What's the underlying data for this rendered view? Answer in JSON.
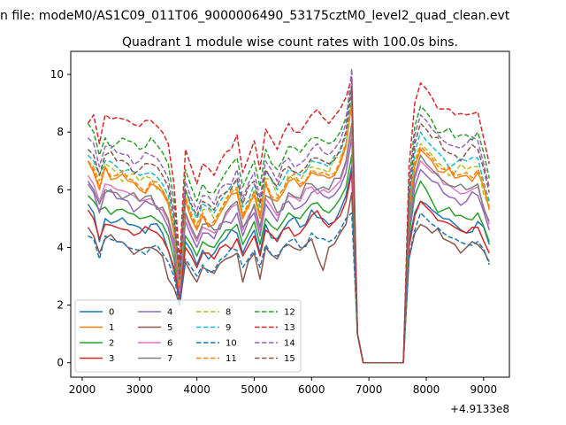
{
  "chart_data": {
    "type": "line",
    "suptitle": "n file: modeM0/AS1C09_011T06_9000006490_53175cztM0_level2_quad_clean.evt",
    "title": "Quadrant 1 module wise count rates with 100.0s bins.",
    "xlabel": "",
    "ylabel": "",
    "offset_text": "+4.9133e8",
    "xlim": [
      1800,
      9450
    ],
    "ylim": [
      -0.5,
      10.8
    ],
    "xticks": [
      2000,
      3000,
      4000,
      5000,
      6000,
      7000,
      8000,
      9000
    ],
    "yticks": [
      0,
      2,
      4,
      6,
      8,
      10
    ],
    "x_start": 2100,
    "x_step": 100,
    "n_points": 71,
    "legend": {
      "loc": "lower-left",
      "ncol": 4
    },
    "anchors_x": [
      2100,
      2200,
      2300,
      2400,
      2600,
      2800,
      3000,
      3200,
      3400,
      3500,
      3600,
      3700,
      3800,
      3900,
      4000,
      4100,
      4300,
      4500,
      4700,
      4800,
      5000,
      5100,
      5200,
      5400,
      5600,
      5800,
      6000,
      6200,
      6300,
      6500,
      6600,
      6700,
      6800,
      6900,
      7000,
      7600,
      7700,
      7800,
      7900,
      8000,
      8100,
      8300,
      8500,
      8700,
      8900,
      9100
    ],
    "series": [
      {
        "name": "0",
        "style": "solid",
        "color": "#1f77b4",
        "anchors": [
          5.5,
          5.2,
          4.2,
          5.0,
          4.9,
          4.8,
          4.7,
          4.8,
          4.5,
          3.9,
          3.2,
          2.1,
          4.2,
          3.9,
          3.4,
          3.9,
          3.8,
          4.3,
          4.5,
          3.8,
          4.6,
          3.8,
          4.8,
          4.3,
          4.9,
          4.7,
          5.3,
          5.0,
          4.8,
          5.3,
          5.8,
          6.8,
          1.0,
          0,
          0,
          0,
          4.2,
          5.2,
          5.6,
          5.5,
          5.3,
          5.0,
          4.8,
          4.5,
          4.9,
          4.1
        ]
      },
      {
        "name": "1",
        "style": "solid",
        "color": "#ff7f0e",
        "anchors": [
          7.0,
          6.6,
          6.0,
          6.8,
          6.4,
          6.3,
          6.0,
          6.2,
          5.9,
          5.5,
          4.5,
          2.6,
          5.6,
          5.0,
          4.6,
          5.1,
          4.8,
          5.5,
          5.9,
          5.0,
          5.8,
          5.0,
          6.2,
          5.6,
          6.3,
          6.1,
          6.6,
          6.5,
          6.4,
          6.9,
          7.5,
          9.0,
          1.0,
          0,
          0,
          0,
          5.2,
          6.8,
          7.4,
          7.2,
          7.0,
          6.6,
          6.4,
          6.5,
          6.6,
          5.3
        ]
      },
      {
        "name": "2",
        "style": "solid",
        "color": "#2ca02c",
        "anchors": [
          5.8,
          5.6,
          5.3,
          5.4,
          5.3,
          5.2,
          5.0,
          5.1,
          4.8,
          4.4,
          3.6,
          2.3,
          4.4,
          4.1,
          3.7,
          4.2,
          4.0,
          4.6,
          4.8,
          4.1,
          4.9,
          4.1,
          5.0,
          4.6,
          5.2,
          5.0,
          5.5,
          5.3,
          5.2,
          5.7,
          6.1,
          7.2,
          1.0,
          0,
          0,
          0,
          4.4,
          5.8,
          6.3,
          6.0,
          5.6,
          5.3,
          5.1,
          5.0,
          5.2,
          4.2
        ]
      },
      {
        "name": "3",
        "style": "solid",
        "color": "#d62728",
        "anchors": [
          5.3,
          5.0,
          4.3,
          4.8,
          4.7,
          4.6,
          4.5,
          4.6,
          4.3,
          3.9,
          3.3,
          2.2,
          4.0,
          3.7,
          3.3,
          3.8,
          3.6,
          4.1,
          4.3,
          3.7,
          4.4,
          3.7,
          4.6,
          4.2,
          4.7,
          4.5,
          5.1,
          4.9,
          4.7,
          5.1,
          5.6,
          6.6,
          1.0,
          0,
          0,
          0,
          4.0,
          5.1,
          5.6,
          5.4,
          5.2,
          4.9,
          4.7,
          4.5,
          4.7,
          3.8
        ]
      },
      {
        "name": "4",
        "style": "solid",
        "color": "#9467bd",
        "anchors": [
          6.2,
          5.9,
          5.2,
          5.9,
          5.7,
          5.6,
          5.4,
          5.5,
          5.1,
          4.7,
          3.9,
          2.4,
          4.9,
          4.4,
          4.0,
          4.5,
          4.3,
          4.9,
          5.2,
          4.4,
          5.2,
          4.4,
          5.5,
          4.9,
          5.6,
          5.4,
          5.9,
          5.8,
          5.7,
          6.1,
          6.6,
          7.8,
          1.0,
          0,
          0,
          0,
          4.6,
          6.1,
          6.7,
          6.5,
          6.3,
          5.9,
          5.7,
          5.6,
          5.8,
          4.6
        ]
      },
      {
        "name": "5",
        "style": "solid",
        "color": "#8c564b",
        "anchors": [
          4.7,
          4.4,
          3.8,
          4.3,
          4.2,
          4.0,
          3.9,
          4.0,
          3.7,
          2.9,
          2.6,
          2.0,
          3.5,
          3.1,
          2.8,
          3.3,
          3.1,
          3.6,
          3.8,
          2.8,
          3.8,
          2.9,
          4.0,
          3.6,
          4.1,
          3.9,
          4.3,
          3.2,
          4.0,
          4.5,
          4.8,
          5.9,
          1.0,
          0,
          0,
          0,
          3.6,
          4.5,
          4.8,
          4.7,
          4.5,
          4.3,
          4.1,
          4.0,
          4.1,
          3.5
        ]
      },
      {
        "name": "6",
        "style": "solid",
        "color": "#e377c2",
        "anchors": [
          6.5,
          6.2,
          5.6,
          6.2,
          6.0,
          5.9,
          5.6,
          5.7,
          5.3,
          4.9,
          4.1,
          2.5,
          5.1,
          4.6,
          4.2,
          4.7,
          4.5,
          5.1,
          5.5,
          4.6,
          5.4,
          4.6,
          5.7,
          5.1,
          5.8,
          5.6,
          6.1,
          6.0,
          5.9,
          6.3,
          6.9,
          8.1,
          1.0,
          0,
          0,
          0,
          4.8,
          6.4,
          7.0,
          6.8,
          6.6,
          6.2,
          6.0,
          5.9,
          6.1,
          4.8
        ]
      },
      {
        "name": "7",
        "style": "solid",
        "color": "#7f7f7f",
        "anchors": [
          6.3,
          6.0,
          5.5,
          6.0,
          5.9,
          5.8,
          5.6,
          5.8,
          5.4,
          5.0,
          4.2,
          2.6,
          5.2,
          4.7,
          4.3,
          4.8,
          4.6,
          5.2,
          5.6,
          4.7,
          5.5,
          4.7,
          5.8,
          5.2,
          5.9,
          5.7,
          6.2,
          6.1,
          6.0,
          6.4,
          7.0,
          8.3,
          1.0,
          0,
          0,
          0,
          4.9,
          6.5,
          7.2,
          6.9,
          6.7,
          6.3,
          6.1,
          6.0,
          6.2,
          4.9
        ]
      },
      {
        "name": "8",
        "style": "dashed",
        "color": "#bcbd22",
        "anchors": [
          7.0,
          6.8,
          6.3,
          6.9,
          6.6,
          6.5,
          6.3,
          6.4,
          6.0,
          5.6,
          4.6,
          2.7,
          5.8,
          5.2,
          4.8,
          5.3,
          5.0,
          5.7,
          6.1,
          5.2,
          6.0,
          5.2,
          6.4,
          5.8,
          6.5,
          6.3,
          6.8,
          6.7,
          6.6,
          7.1,
          7.6,
          9.1,
          1.0,
          0,
          0,
          0,
          5.3,
          7.0,
          7.6,
          7.4,
          7.2,
          6.8,
          6.6,
          6.7,
          6.8,
          5.4
        ]
      },
      {
        "name": "9",
        "style": "dashed",
        "color": "#17becf",
        "anchors": [
          7.2,
          7.0,
          6.5,
          7.0,
          6.8,
          6.7,
          6.5,
          6.6,
          6.2,
          5.8,
          4.7,
          2.8,
          6.0,
          5.4,
          5.0,
          5.5,
          5.2,
          5.9,
          6.3,
          5.4,
          6.2,
          5.4,
          6.6,
          6.0,
          6.7,
          6.5,
          7.0,
          6.9,
          6.8,
          7.3,
          7.9,
          9.3,
          1.0,
          0,
          0,
          0,
          5.5,
          7.3,
          8.0,
          7.7,
          7.5,
          7.1,
          6.9,
          7.0,
          7.1,
          5.6
        ]
      },
      {
        "name": "10",
        "style": "dashed",
        "color": "#1f77b4",
        "anchors": [
          4.4,
          4.3,
          3.6,
          4.4,
          4.2,
          4.0,
          3.9,
          4.0,
          3.8,
          3.5,
          3.0,
          2.0,
          3.6,
          3.3,
          3.0,
          3.4,
          3.2,
          3.7,
          3.9,
          3.3,
          3.9,
          3.3,
          4.1,
          3.7,
          4.2,
          4.0,
          4.5,
          4.3,
          4.2,
          4.6,
          5.0,
          5.2,
          1.0,
          0,
          0,
          0,
          3.7,
          4.6,
          5.2,
          5.0,
          4.8,
          4.5,
          4.3,
          4.1,
          4.2,
          3.4
        ]
      },
      {
        "name": "11",
        "style": "dashed",
        "color": "#ff7f0e",
        "anchors": [
          7.0,
          6.7,
          6.1,
          6.8,
          6.5,
          6.4,
          6.1,
          6.3,
          6.0,
          5.6,
          4.6,
          2.7,
          5.7,
          5.1,
          4.7,
          5.2,
          4.9,
          5.6,
          6.0,
          5.1,
          5.9,
          5.1,
          6.3,
          5.7,
          6.4,
          6.2,
          6.7,
          6.6,
          6.5,
          7.0,
          7.6,
          9.0,
          1.0,
          0,
          0,
          0,
          5.3,
          6.9,
          7.5,
          7.3,
          7.1,
          6.7,
          6.5,
          6.6,
          6.7,
          5.4
        ]
      },
      {
        "name": "12",
        "style": "dashed",
        "color": "#2ca02c",
        "anchors": [
          8.3,
          8.0,
          7.2,
          7.8,
          7.6,
          7.7,
          7.4,
          7.8,
          7.3,
          6.9,
          5.6,
          3.2,
          6.7,
          6.1,
          5.6,
          6.2,
          5.9,
          6.6,
          7.1,
          6.1,
          7.0,
          6.1,
          7.4,
          6.7,
          7.5,
          7.3,
          7.8,
          7.7,
          7.6,
          8.0,
          8.5,
          9.6,
          1.0,
          0,
          0,
          0,
          6.2,
          8.2,
          8.9,
          8.7,
          8.4,
          8.0,
          7.8,
          7.9,
          8.0,
          6.4
        ]
      },
      {
        "name": "13",
        "style": "dashed",
        "color": "#d62728",
        "anchors": [
          8.3,
          8.6,
          7.6,
          8.6,
          8.5,
          8.4,
          8.2,
          8.4,
          8.0,
          7.6,
          6.2,
          3.5,
          7.4,
          6.8,
          6.2,
          6.9,
          6.5,
          7.3,
          7.9,
          6.6,
          7.7,
          6.7,
          8.1,
          7.4,
          8.3,
          8.0,
          8.6,
          8.5,
          8.3,
          8.8,
          9.2,
          9.9,
          1.0,
          0,
          0,
          0,
          6.8,
          9.0,
          9.7,
          9.5,
          9.2,
          8.8,
          8.6,
          8.6,
          8.7,
          6.9
        ]
      },
      {
        "name": "14",
        "style": "dashed",
        "color": "#9467bd",
        "anchors": [
          7.8,
          7.6,
          6.8,
          7.5,
          7.3,
          7.2,
          7.0,
          7.2,
          6.8,
          6.4,
          5.2,
          3.0,
          6.3,
          5.7,
          5.3,
          5.8,
          5.5,
          6.2,
          6.7,
          5.7,
          6.6,
          5.7,
          7.0,
          6.3,
          7.1,
          6.9,
          7.4,
          7.3,
          7.2,
          7.7,
          8.3,
          10.2,
          1.0,
          0,
          0,
          0,
          5.9,
          7.9,
          8.6,
          8.4,
          8.1,
          7.7,
          7.5,
          7.6,
          7.7,
          6.1
        ]
      },
      {
        "name": "15",
        "style": "dashed",
        "color": "#8c564b",
        "anchors": [
          7.4,
          7.2,
          6.5,
          7.2,
          7.0,
          6.9,
          6.7,
          6.9,
          6.5,
          6.1,
          5.0,
          2.9,
          6.0,
          5.5,
          5.1,
          5.6,
          5.3,
          5.9,
          6.4,
          5.5,
          6.3,
          5.5,
          6.7,
          6.1,
          6.8,
          6.6,
          7.1,
          7.0,
          6.9,
          7.4,
          8.0,
          9.6,
          1.0,
          0,
          0,
          0,
          5.7,
          7.6,
          8.3,
          8.1,
          7.8,
          7.4,
          7.2,
          7.3,
          7.4,
          5.9
        ]
      }
    ]
  }
}
